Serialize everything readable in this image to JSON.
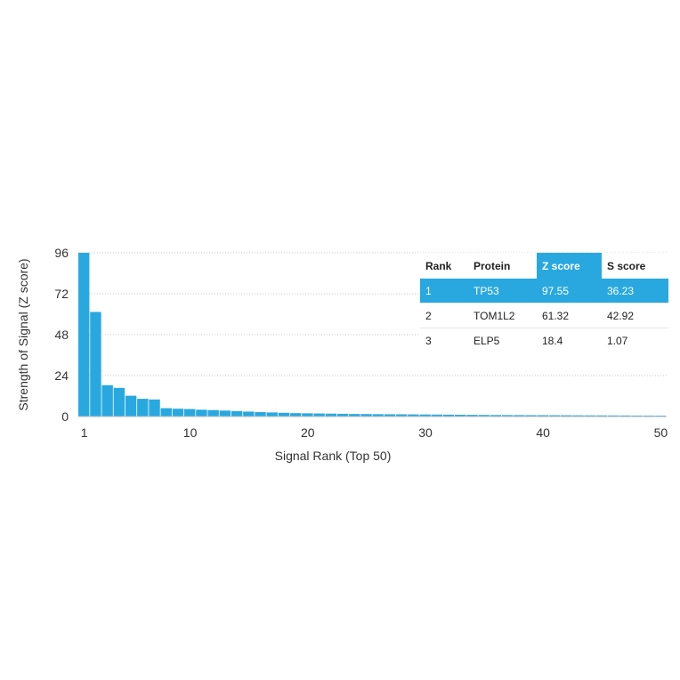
{
  "chart_data": {
    "type": "bar",
    "xlabel": "Signal Rank (Top 50)",
    "ylabel": "Strength of Signal (Z score)",
    "ylim": [
      0,
      96
    ],
    "yticks": [
      0,
      24,
      48,
      72,
      96
    ],
    "xticks": [
      1,
      10,
      20,
      30,
      40,
      50
    ],
    "grid": true,
    "bar_color": "#29a8e0",
    "x": [
      1,
      2,
      3,
      4,
      5,
      6,
      7,
      8,
      9,
      10,
      11,
      12,
      13,
      14,
      15,
      16,
      17,
      18,
      19,
      20,
      21,
      22,
      23,
      24,
      25,
      26,
      27,
      28,
      29,
      30,
      31,
      32,
      33,
      34,
      35,
      36,
      37,
      38,
      39,
      40,
      41,
      42,
      43,
      44,
      45,
      46,
      47,
      48,
      49,
      50
    ],
    "values": [
      97.55,
      61.32,
      18.4,
      16.8,
      12.2,
      10.4,
      10.0,
      4.9,
      4.6,
      4.4,
      4.0,
      3.8,
      3.5,
      3.2,
      2.9,
      2.6,
      2.4,
      2.2,
      2.0,
      1.9,
      1.8,
      1.7,
      1.6,
      1.5,
      1.45,
      1.4,
      1.35,
      1.3,
      1.25,
      1.2,
      1.15,
      1.1,
      1.05,
      1.0,
      0.95,
      0.9,
      0.88,
      0.85,
      0.82,
      0.8,
      0.78,
      0.75,
      0.72,
      0.7,
      0.68,
      0.65,
      0.62,
      0.6,
      0.58,
      0.55
    ]
  },
  "table": {
    "headers": [
      "Rank",
      "Protein",
      "Z score",
      "S score"
    ],
    "rows": [
      [
        "1",
        "TP53",
        "97.55",
        "36.23"
      ],
      [
        "2",
        "TOM1L2",
        "61.32",
        "42.92"
      ],
      [
        "3",
        "ELP5",
        "18.4",
        "1.07"
      ]
    ],
    "highlight_color": "#29a8e0"
  }
}
